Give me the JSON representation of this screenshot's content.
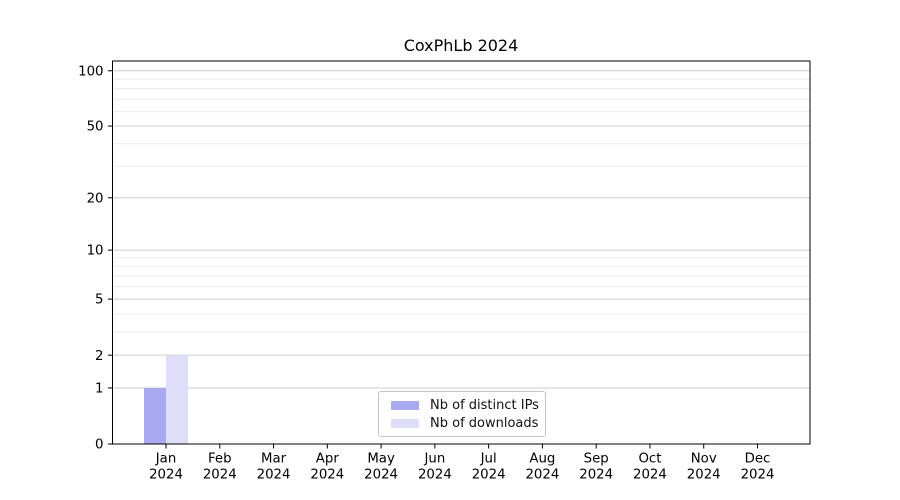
{
  "chart_data": {
    "type": "bar",
    "title": "CoxPhLb 2024",
    "x_tick_months": [
      "Jan",
      "Feb",
      "Mar",
      "Apr",
      "May",
      "Jun",
      "Jul",
      "Aug",
      "Sep",
      "Oct",
      "Nov",
      "Dec"
    ],
    "x_tick_year": "2024",
    "series": [
      {
        "name": "Nb of distinct IPs",
        "color": "#a9a9f2",
        "values": [
          1,
          0,
          0,
          0,
          0,
          0,
          0,
          0,
          0,
          0,
          0,
          0
        ]
      },
      {
        "name": "Nb of downloads",
        "color": "#dedef8",
        "values": [
          2,
          0,
          0,
          0,
          0,
          0,
          0,
          0,
          0,
          0,
          0,
          0
        ]
      }
    ],
    "yscale": "log1p",
    "ylim": [
      0,
      113
    ],
    "y_ticks": [
      0,
      1,
      2,
      5,
      10,
      20,
      50,
      100
    ],
    "y_minor_ticks": [
      3,
      4,
      6,
      7,
      8,
      9,
      30,
      40,
      60,
      70,
      80,
      90
    ],
    "grid": "on",
    "legend_position": "lower center",
    "colors": {
      "grid_major": "#cccccc",
      "grid_minor": "#ececec",
      "spine": "#000000",
      "text": "#000000",
      "background": "#ffffff"
    }
  }
}
